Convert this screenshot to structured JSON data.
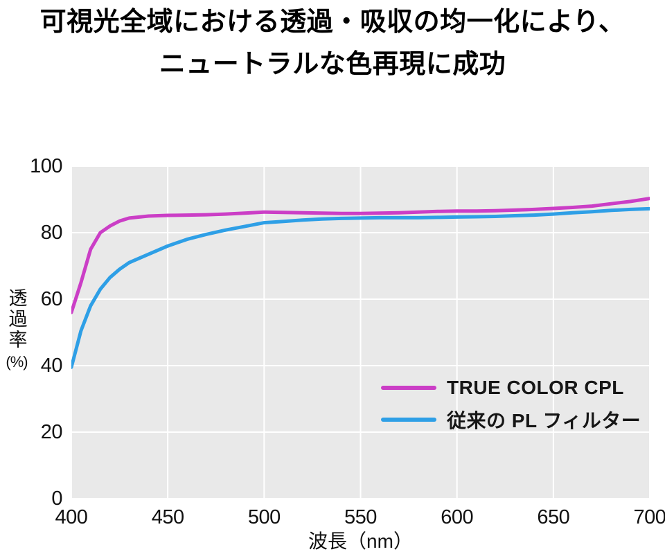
{
  "title": {
    "line1": "可視光全域における透過・吸収の均一化により、",
    "line2": "ニュートラルな色再現に成功"
  },
  "colors": {
    "plot_background": "#e9e9e9",
    "gridline": "#ffffff",
    "true_color_cpl": "#cb3ec6",
    "conventional_pl": "#2e9fe6",
    "text": "#111111"
  },
  "chart_data": {
    "type": "line",
    "xlabel": "波長（nm）",
    "ylabel": "透過率(%)",
    "ylabel_main": "透過率",
    "ylabel_unit": "(%)",
    "xlim": [
      400,
      700
    ],
    "ylim": [
      0,
      100
    ],
    "xticks": [
      400,
      450,
      500,
      550,
      600,
      650,
      700
    ],
    "yticks": [
      0,
      20,
      40,
      60,
      80,
      100
    ],
    "grid": true,
    "legend_position": "inside middle-right",
    "x": [
      400,
      405,
      410,
      415,
      420,
      425,
      430,
      440,
      450,
      460,
      470,
      480,
      490,
      500,
      510,
      520,
      530,
      540,
      550,
      560,
      570,
      580,
      590,
      600,
      610,
      620,
      630,
      640,
      650,
      660,
      670,
      680,
      690,
      700
    ],
    "series": [
      {
        "name": "TRUE COLOR CPL",
        "color": "#cb3ec6",
        "values": [
          56,
          65,
          75,
          80,
          82,
          83.5,
          84.4,
          85,
          85.2,
          85.3,
          85.4,
          85.6,
          85.9,
          86.2,
          86.1,
          86,
          85.9,
          85.8,
          85.8,
          85.9,
          86,
          86.2,
          86.4,
          86.5,
          86.5,
          86.6,
          86.8,
          87,
          87.3,
          87.6,
          88,
          88.7,
          89.4,
          90.3
        ]
      },
      {
        "name": "従来の PL フィルター",
        "color": "#2e9fe6",
        "values": [
          39.5,
          50.5,
          58,
          63,
          66.5,
          69,
          71,
          73.5,
          76,
          78,
          79.5,
          80.8,
          81.9,
          83,
          83.4,
          83.8,
          84.1,
          84.3,
          84.4,
          84.5,
          84.5,
          84.5,
          84.6,
          84.7,
          84.8,
          84.9,
          85.1,
          85.3,
          85.6,
          86,
          86.3,
          86.7,
          87,
          87.2
        ]
      }
    ]
  }
}
